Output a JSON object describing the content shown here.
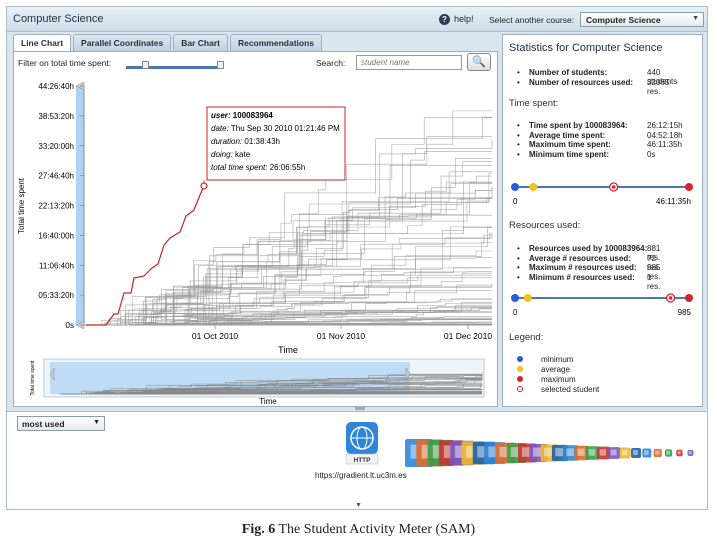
{
  "header": {
    "title": "Computer Science",
    "help_label": "help!",
    "course_label": "Select another course:",
    "course_value": "Computer Science"
  },
  "tabs": [
    {
      "label": "Line Chart",
      "active": true
    },
    {
      "label": "Parallel Coordinates",
      "active": false
    },
    {
      "label": "Bar Chart",
      "active": false
    },
    {
      "label": "Recommendations",
      "active": false
    }
  ],
  "filter": {
    "label": "Filter on total time spent:",
    "min_fraction": 0.2,
    "max_fraction": 1.0
  },
  "search": {
    "label": "Search:",
    "placeholder": "student name"
  },
  "line_chart": {
    "y_label": "Total time spent",
    "y_ticks": [
      "44:26:40h",
      "38:53:20h",
      "33:20:00h",
      "27:46:40h",
      "22:13:20h",
      "16:40:00h",
      "11:06:40h",
      "05:33:20h",
      "0s"
    ],
    "x_label": "Time",
    "x_ticks": [
      "01 Oct 2010",
      "01 Nov 2010",
      "01 Dec 2010"
    ],
    "overview_y_label": "Total time spent",
    "overview_x_label": "Time",
    "tooltip": {
      "user_label": "user:",
      "user": "100083964",
      "date_label": "date:",
      "date": "Thu Sep 30 2010 01:21:46 PM",
      "duration_label": "duration:",
      "duration": "01:38:43h",
      "doing_label": "doing:",
      "doing": "kate",
      "total_label": "total time spent:",
      "total": "26:06:55h"
    }
  },
  "stats": {
    "title": "Statistics for Computer Science",
    "general": [
      {
        "k": "Number of students:",
        "v": "440 students"
      },
      {
        "k": "Number of resources used:",
        "v": "32065 res."
      }
    ],
    "time_title": "Time spent:",
    "time": [
      {
        "k": "Time spent by 100083964:",
        "v": "26:12:15h"
      },
      {
        "k": "Average time spent:",
        "v": "04:52:18h"
      },
      {
        "k": "Maximum time spent:",
        "v": "46:11:35h"
      },
      {
        "k": "Minimum time spent:",
        "v": "0s"
      }
    ],
    "time_scale_min": "0",
    "time_scale_max": "46:11:35h",
    "time_markers": {
      "average": 0.105,
      "selected": 0.567,
      "max": 1.0
    },
    "resources_title": "Resources used:",
    "resources": [
      {
        "k": "Resources used by 100083964:",
        "v": "881 res."
      },
      {
        "k": "Average # resources used:",
        "v": "72 res."
      },
      {
        "k": "Maximum # resources used:",
        "v": "985 res."
      },
      {
        "k": "Minimum # resources used:",
        "v": "1 res."
      }
    ],
    "res_scale_min": "0",
    "res_scale_max": "985",
    "res_markers": {
      "average": 0.073,
      "selected": 0.894,
      "max": 1.0
    },
    "legend_title": "Legend:",
    "legend": [
      {
        "label": "minimum",
        "color": "#2a5bd7"
      },
      {
        "label": "average",
        "color": "#f2c21b"
      },
      {
        "label": "maximum",
        "color": "#d7232b"
      },
      {
        "label": "selected student",
        "color": "#d7232b"
      }
    ]
  },
  "bottom": {
    "sort_value": "most used",
    "resource_icon_label": "HTTP",
    "resource_url": "https://gradient.lt.uc3m.es"
  },
  "caption": {
    "label": "Fig. 6",
    "text": "The Student Activity Meter (SAM)"
  },
  "colors": {
    "selected_line": "#cc2222",
    "lines": "#9a9a9a",
    "brush": "#aed3f2",
    "accent": "#4a76b8"
  }
}
